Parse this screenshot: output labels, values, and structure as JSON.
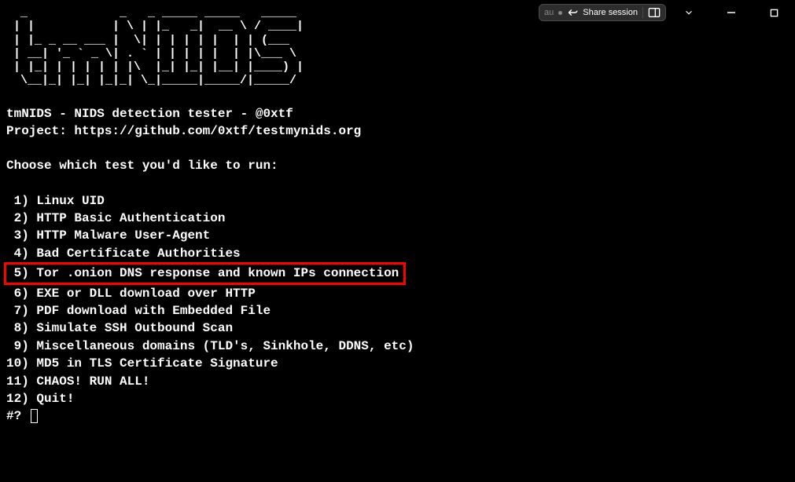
{
  "ascii_art": "  _             _   _ _____ _____   _____\n | |           | \\ | |_   _|  __ \\ / ____|\n | |_ _ __ ___ |  \\| | | | | |  | | (___\n | __| '_ ` _ \\| . ` | | | | |  | |\\___ \\\n | |_| | | | | | |\\  |_| |_| |__| |____) |\n  \\__|_| |_| |_|_| \\_|_____|_____/|_____/",
  "header": {
    "line1": "tmNIDS - NIDS detection tester - @0xtf",
    "line2": "Project: https://github.com/0xtf/testmynids.org"
  },
  "prompt_title": "Choose which test you'd like to run:",
  "menu": {
    "items": [
      " 1) Linux UID",
      " 2) HTTP Basic Authentication",
      " 3) HTTP Malware User-Agent",
      " 4) Bad Certificate Authorities",
      " 5) Tor .onion DNS response and known IPs connection",
      " 6) EXE or DLL download over HTTP",
      " 7) PDF download with Embedded File",
      " 8) Simulate SSH Outbound Scan",
      " 9) Miscellaneous domains (TLD's, Sinkhole, DDNS, etc)",
      "10) MD5 in TLS Certificate Signature",
      "11) CHAOS! RUN ALL!",
      "12) Quit!"
    ],
    "highlighted_index": 4
  },
  "input_prompt": "#? ",
  "toolbar": {
    "au_label": "au",
    "share_label": "Share session"
  },
  "colors": {
    "background": "#000000",
    "text": "#ffffff",
    "highlight_border": "#ff0000",
    "toolbar_bg": "#2d2d2d",
    "toolbar_border": "#4a4a4a"
  }
}
